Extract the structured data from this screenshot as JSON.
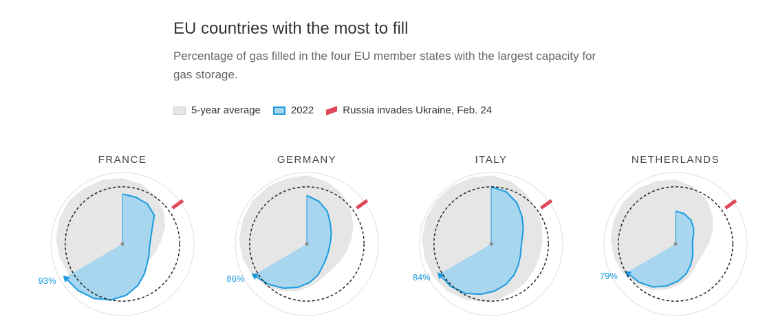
{
  "header": {
    "title": "EU countries with the most to fill",
    "subtitle": "Percentage of gas filled in the four EU member states with the largest capacity for gas storage."
  },
  "legend": {
    "average_label": "5-year average",
    "current_label": "2022",
    "invasion_label": "Russia invades Ukraine, Feb. 24"
  },
  "colors": {
    "average_fill": "#e6e6e6",
    "current_fill": "#a7d6ee",
    "current_stroke": "#1a9be0",
    "invasion_marker": "#e0485a",
    "target_ring": "#222222",
    "outer_ring": "#dddddd"
  },
  "chart_data": {
    "type": "radial-area",
    "angular_axis": "day of year (clockwise from top)",
    "radial_axis": "storage filled (%)",
    "target_ring_pct": 80,
    "invasion_marker_day": 55,
    "countries": [
      {
        "name": "FRANCE",
        "current_label": "93%",
        "current_end_day": 243,
        "average": [
          92,
          88,
          82,
          74,
          64,
          54,
          48,
          44,
          42,
          46,
          54,
          64,
          72,
          80,
          86,
          90,
          93,
          95,
          96,
          95,
          94
        ],
        "current": [
          70,
          68,
          66,
          60,
          46,
          40,
          38,
          40,
          44,
          52,
          62,
          72,
          80,
          86,
          90,
          93
        ]
      },
      {
        "name": "GERMANY",
        "current_label": "86%",
        "current_end_day": 243,
        "average": [
          96,
          92,
          86,
          78,
          70,
          62,
          56,
          52,
          50,
          52,
          58,
          66,
          74,
          82,
          88,
          92,
          95,
          96,
          97,
          97,
          96
        ],
        "current": [
          68,
          62,
          54,
          44,
          38,
          34,
          32,
          32,
          34,
          38,
          46,
          54,
          62,
          70,
          78,
          86
        ]
      },
      {
        "name": "ITALY",
        "current_label": "84%",
        "current_end_day": 243,
        "average": [
          96,
          92,
          86,
          80,
          76,
          72,
          70,
          70,
          72,
          74,
          78,
          82,
          86,
          90,
          93,
          95,
          97,
          98,
          98,
          98,
          97
        ],
        "current": [
          80,
          76,
          68,
          58,
          50,
          44,
          42,
          44,
          48,
          54,
          60,
          66,
          72,
          78,
          82,
          84
        ]
      },
      {
        "name": "NETHERLANDS",
        "current_label": "79%",
        "current_end_day": 243,
        "average": [
          90,
          84,
          76,
          66,
          56,
          48,
          42,
          40,
          42,
          48,
          56,
          64,
          72,
          78,
          84,
          88,
          91,
          93,
          94,
          94,
          92
        ],
        "current": [
          46,
          44,
          40,
          34,
          28,
          24,
          24,
          26,
          30,
          36,
          44,
          52,
          60,
          68,
          74,
          79
        ]
      }
    ]
  }
}
